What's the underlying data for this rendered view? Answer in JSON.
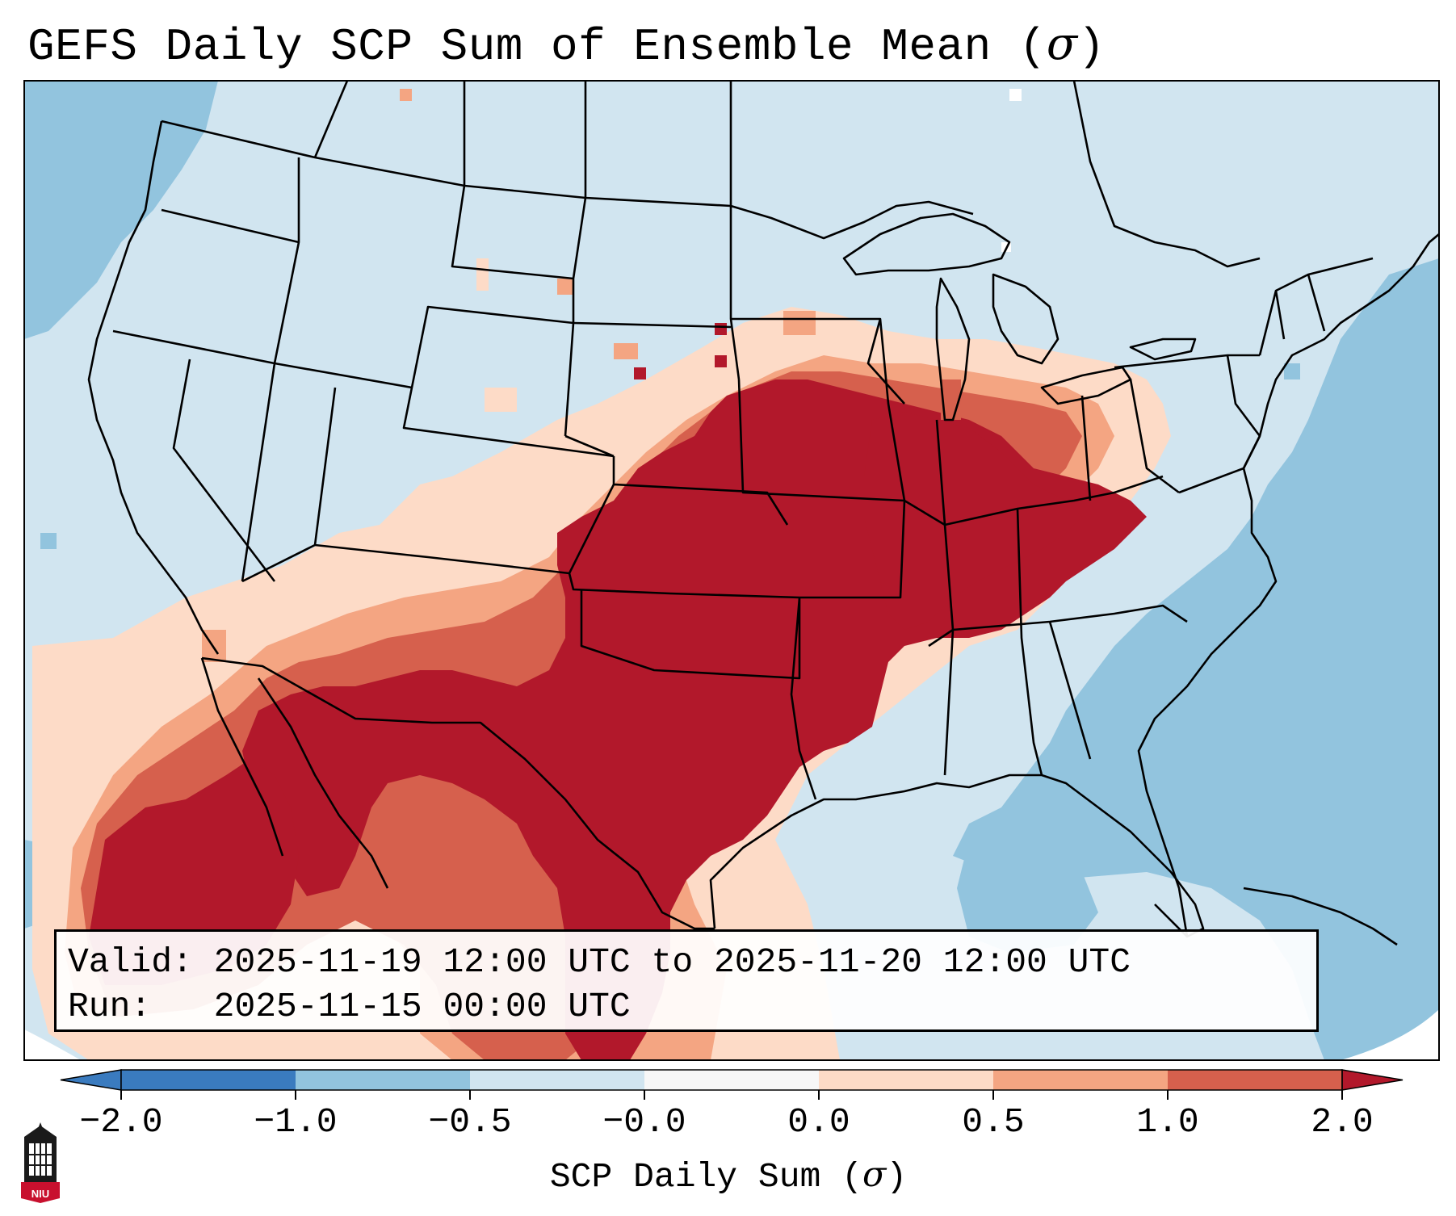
{
  "title": {
    "text": "GEFS Daily SCP Sum of Ensemble Mean (",
    "symbol": "σ",
    "close": ")"
  },
  "info": {
    "valid_label": "Valid:",
    "valid_value": "2025-11-19 12:00 UTC to 2025-11-20 12:00 UTC",
    "run_label": "Run:",
    "run_value": "2025-11-15 00:00 UTC"
  },
  "colorbar": {
    "ticks": [
      "−2.0",
      "−1.0",
      "−0.5",
      "−0.0",
      "0.0",
      "0.5",
      "1.0",
      "2.0"
    ],
    "colors": [
      "#3a7bbf",
      "#92c4de",
      "#d1e5f0",
      "#f7f7f7",
      "#fddbc7",
      "#f4a582",
      "#d6604d",
      "#b2182b"
    ],
    "label_text": "SCP Daily Sum (",
    "label_symbol": "σ",
    "label_close": ")"
  },
  "map_colors": {
    "land_background": "#d1e5f0",
    "ocean": "#92c4de",
    "strong_positive": "#b2182b",
    "moderate_positive": "#d6604d",
    "weak_positive": "#f4a582",
    "slight_positive": "#fddbc7",
    "border": "#000000"
  },
  "logo": {
    "text": "NIU"
  }
}
